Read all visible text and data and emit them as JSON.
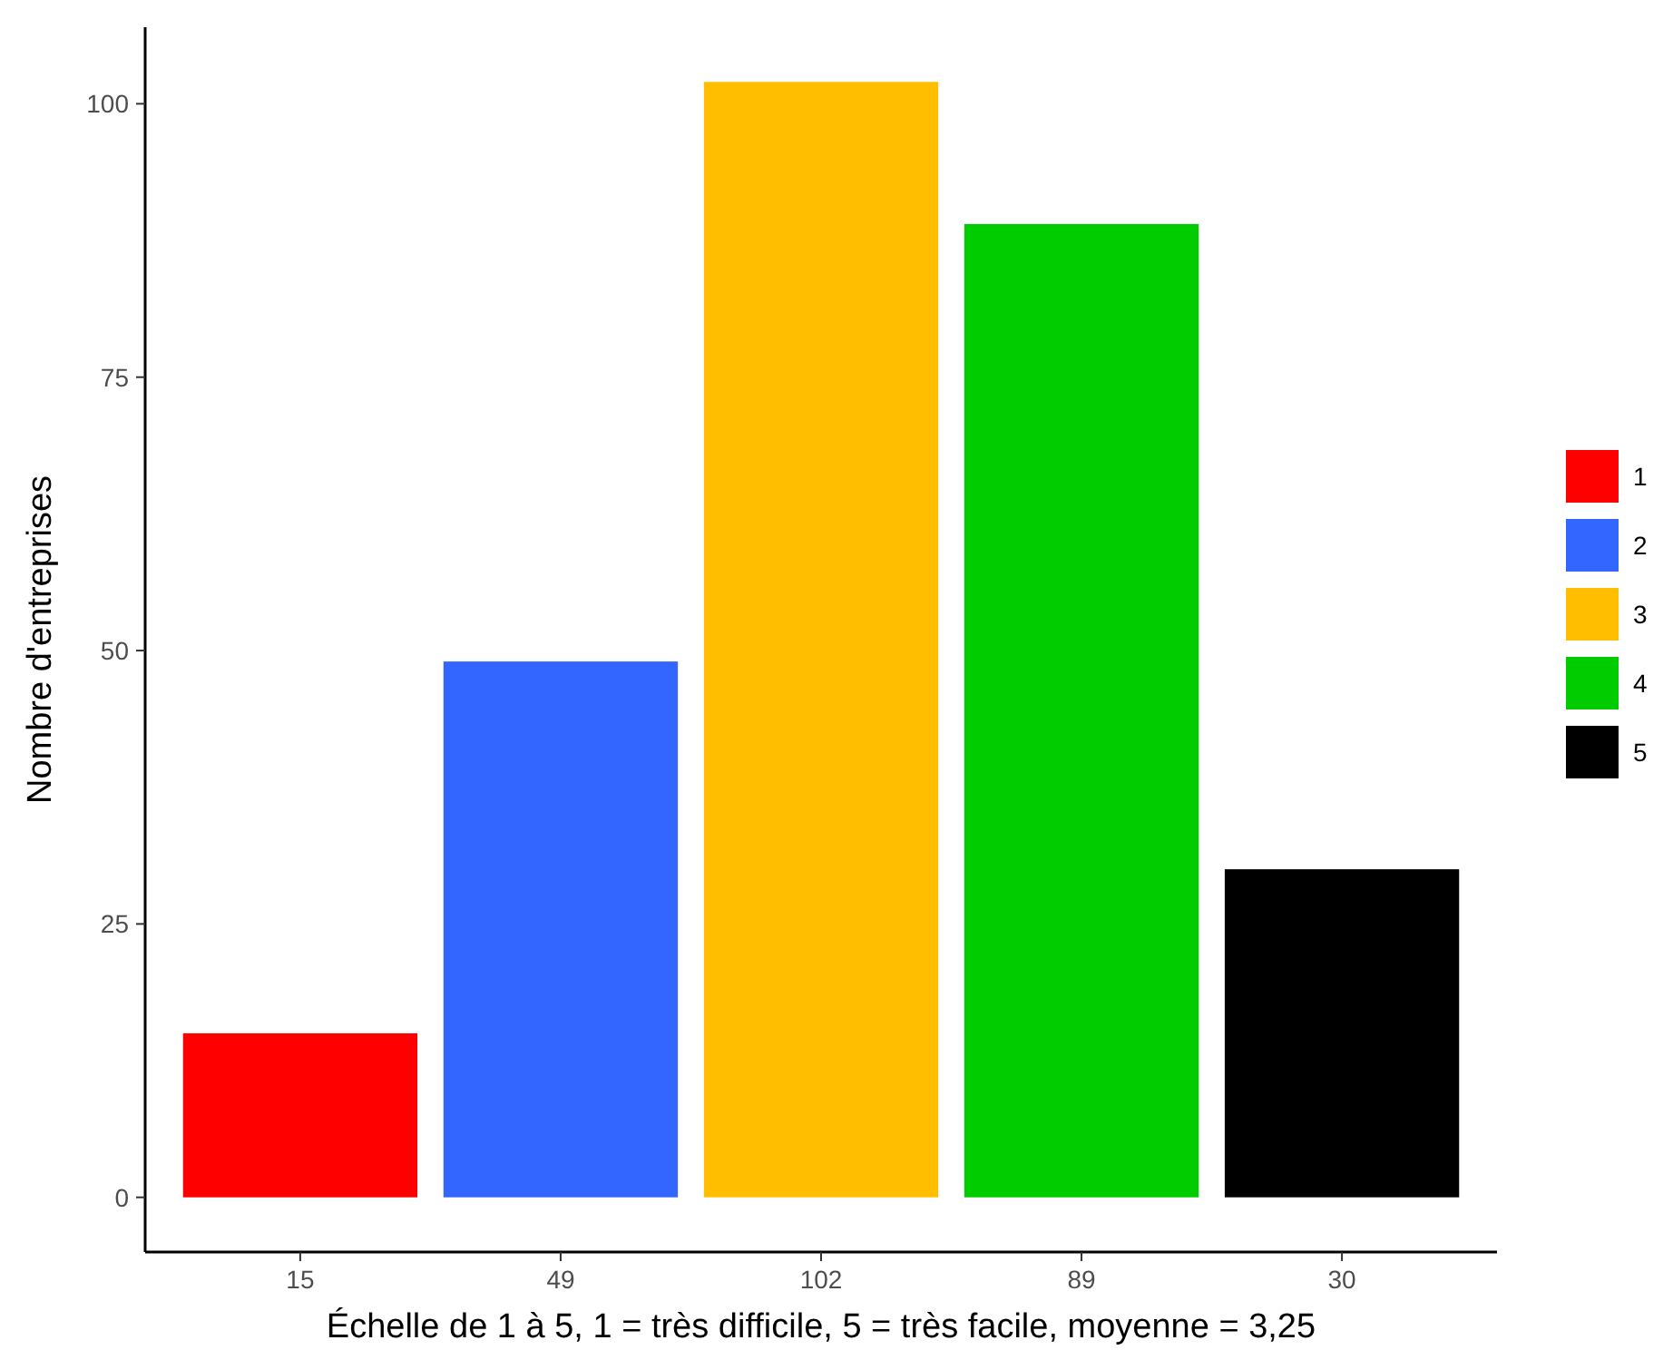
{
  "chart_data": {
    "type": "bar",
    "xlabel": "Échelle de 1 à 5, 1 = très difficile, 5 = très facile, moyenne = 3,25",
    "ylabel": "Nombre d'entreprises",
    "categories": [
      "15",
      "49",
      "102",
      "89",
      "30"
    ],
    "series": [
      {
        "name": "1",
        "color": "#ff0000",
        "values": [
          15,
          null,
          null,
          null,
          null
        ]
      },
      {
        "name": "2",
        "color": "#3366ff",
        "values": [
          null,
          49,
          null,
          null,
          null
        ]
      },
      {
        "name": "3",
        "color": "#ffbf00",
        "values": [
          null,
          null,
          102,
          null,
          null
        ]
      },
      {
        "name": "4",
        "color": "#00cc00",
        "values": [
          null,
          null,
          null,
          89,
          null
        ]
      },
      {
        "name": "5",
        "color": "#000000",
        "values": [
          null,
          null,
          null,
          null,
          30
        ]
      }
    ],
    "stacked": true,
    "ylim": [
      -5,
      107
    ],
    "yticks": [
      0,
      25,
      50,
      75,
      100
    ],
    "grid": false,
    "legend": "right"
  }
}
